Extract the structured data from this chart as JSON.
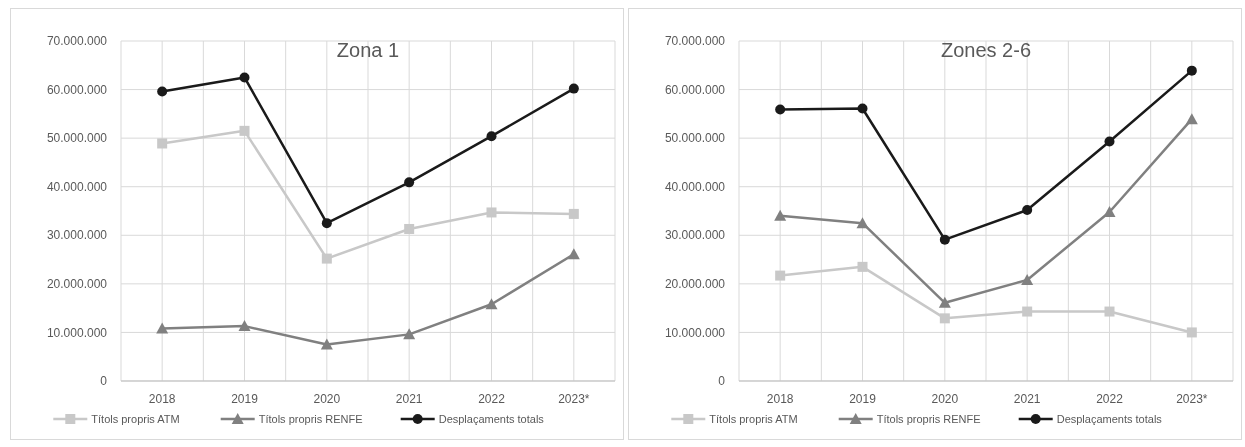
{
  "chart_data": [
    {
      "type": "line",
      "title": "Zona 1",
      "categories": [
        "2018",
        "2019",
        "2020",
        "2021",
        "2022",
        "2023*"
      ],
      "ylim": [
        0,
        70000000
      ],
      "yticks": [
        {
          "value": 0,
          "label": "0"
        },
        {
          "value": 10000000,
          "label": "10.000.000"
        },
        {
          "value": 20000000,
          "label": "20.000.000"
        },
        {
          "value": 30000000,
          "label": "30.000.000"
        },
        {
          "value": 40000000,
          "label": "40.000.000"
        },
        {
          "value": 50000000,
          "label": "50.000.000"
        },
        {
          "value": 60000000,
          "label": "60.000.000"
        },
        {
          "value": 70000000,
          "label": "70.000.000"
        }
      ],
      "grid": true,
      "legend": "bottom",
      "series": [
        {
          "name": "Títols propris ATM",
          "color": "#c8c8c8",
          "marker": "square",
          "values": [
            48900000,
            51500000,
            25200000,
            31300000,
            34700000,
            34400000
          ]
        },
        {
          "name": "Títols propris RENFE",
          "color": "#808080",
          "marker": "triangle",
          "values": [
            10800000,
            11300000,
            7500000,
            9600000,
            15800000,
            26100000
          ]
        },
        {
          "name": "Desplaçaments totals",
          "color": "#1a1a1a",
          "marker": "circle",
          "values": [
            59600000,
            62500000,
            32500000,
            40900000,
            50400000,
            60200000
          ]
        }
      ]
    },
    {
      "type": "line",
      "title": "Zones 2-6",
      "categories": [
        "2018",
        "2019",
        "2020",
        "2021",
        "2022",
        "2023*"
      ],
      "ylim": [
        0,
        70000000
      ],
      "yticks": [
        {
          "value": 0,
          "label": "0"
        },
        {
          "value": 10000000,
          "label": "10.000.000"
        },
        {
          "value": 20000000,
          "label": "20.000.000"
        },
        {
          "value": 30000000,
          "label": "30.000.000"
        },
        {
          "value": 40000000,
          "label": "40.000.000"
        },
        {
          "value": 50000000,
          "label": "50.000.000"
        },
        {
          "value": 60000000,
          "label": "60.000.000"
        },
        {
          "value": 70000000,
          "label": "70.000.000"
        }
      ],
      "grid": true,
      "legend": "bottom",
      "series": [
        {
          "name": "Títols propris ATM",
          "color": "#c8c8c8",
          "marker": "square",
          "values": [
            21700000,
            23500000,
            12900000,
            14300000,
            14300000,
            10000000
          ]
        },
        {
          "name": "Títols propris RENFE",
          "color": "#808080",
          "marker": "triangle",
          "values": [
            34000000,
            32500000,
            16100000,
            20800000,
            34800000,
            53900000
          ]
        },
        {
          "name": "Desplaçaments totals",
          "color": "#1a1a1a",
          "marker": "circle",
          "values": [
            55900000,
            56100000,
            29100000,
            35200000,
            49300000,
            63900000
          ]
        }
      ]
    }
  ]
}
